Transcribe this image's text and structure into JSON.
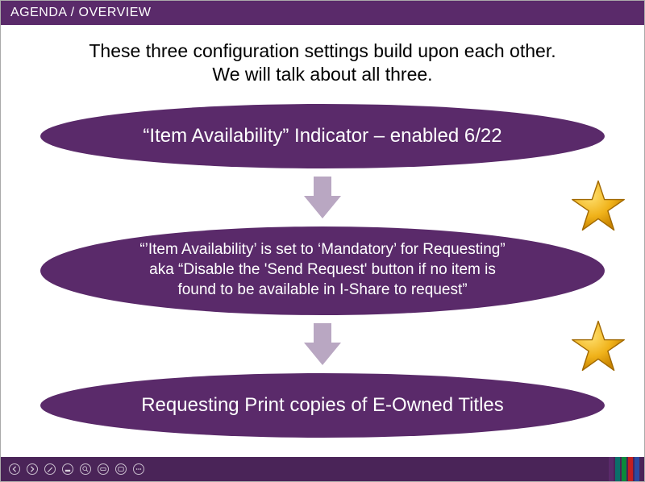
{
  "colors": {
    "purple": "#5a2a6a",
    "footer": "#4a2458",
    "arrow": "#b9a7c2",
    "star_fill": "#f0b21a",
    "star_stroke": "#c98500",
    "ctl_stroke": "rgba(255,255,255,0.75)",
    "bar_colors": [
      "#5a2a6a",
      "#0b6f6a",
      "#0a8a3a",
      "#c21f1f",
      "#2a4aa0"
    ]
  },
  "header": {
    "title": "AGENDA / OVERVIEW"
  },
  "intro": {
    "line1": "These three configuration settings build upon each other.",
    "line2": "We will talk about all three."
  },
  "ellipses": {
    "e1": "“Item Availability” Indicator – enabled 6/22",
    "e2_l1": "“’Item Availability’ is set to ‘Mandatory’ for Requesting”",
    "e2_l2": "aka “Disable the 'Send Request' button if no item is",
    "e2_l3": "found to be available in I-Share to request”",
    "e3": "Requesting Print copies of E-Owned Titles"
  },
  "controls": [
    "prev",
    "play",
    "pen",
    "brush",
    "search",
    "eraser",
    "cc",
    "more"
  ]
}
